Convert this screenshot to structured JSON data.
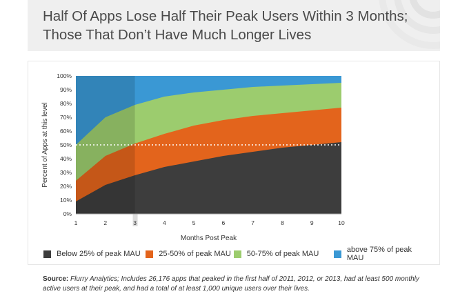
{
  "header": {
    "title_line1": "Half Of Apps Lose Half Their Peak Users Within 3 Months;",
    "title_line2": "Those That Don’t Have Much Longer Lives"
  },
  "source": {
    "label": "Source:",
    "text": "Flurry Analytics; Includes 26,176 apps that peaked in the first half of 2011, 2012, or 2013, had at least 500 monthly active users at their peak, and had a total of at least 1,000 unique users over their lives."
  },
  "colors": {
    "below25": "#3d3d3d",
    "p25_50": "#e3641c",
    "p50_75": "#9ccc6e",
    "above75": "#3a98d4",
    "header_bg": "#efefef"
  },
  "chart_data": {
    "type": "area",
    "stacked": true,
    "xlabel": "Months Post Peak",
    "ylabel": "Percent of Apps at this level",
    "x": [
      1,
      2,
      3,
      4,
      5,
      6,
      7,
      8,
      9,
      10
    ],
    "xlim": [
      1,
      10
    ],
    "ylim": [
      0,
      100
    ],
    "x_ticks": [
      "1",
      "2",
      "3",
      "4",
      "5",
      "6",
      "7",
      "8",
      "9",
      "10"
    ],
    "y_ticks": [
      "0%",
      "10%",
      "20%",
      "30%",
      "40%",
      "50%",
      "60%",
      "70%",
      "80%",
      "90%",
      "100%"
    ],
    "highlight_x": [
      1,
      3
    ],
    "reference_line_y": 50,
    "legend_position": "bottom",
    "series": [
      {
        "name": "Below 25% of peak MAU",
        "color": "#3d3d3d",
        "cumulative": [
          9,
          21,
          28,
          34,
          38,
          42,
          45,
          48,
          50,
          52
        ]
      },
      {
        "name": "25-50% of peak MAU",
        "color": "#e3641c",
        "cumulative": [
          24,
          42,
          51,
          58,
          64,
          68,
          71,
          73,
          75,
          77
        ]
      },
      {
        "name": "50-75% of peak MAU",
        "color": "#9ccc6e",
        "cumulative": [
          50,
          70,
          79,
          85,
          88,
          90,
          92,
          93,
          94,
          95
        ]
      },
      {
        "name": "above 75% of peak MAU",
        "color": "#3a98d4",
        "cumulative": [
          100,
          100,
          100,
          100,
          100,
          100,
          100,
          100,
          100,
          100
        ]
      }
    ]
  }
}
